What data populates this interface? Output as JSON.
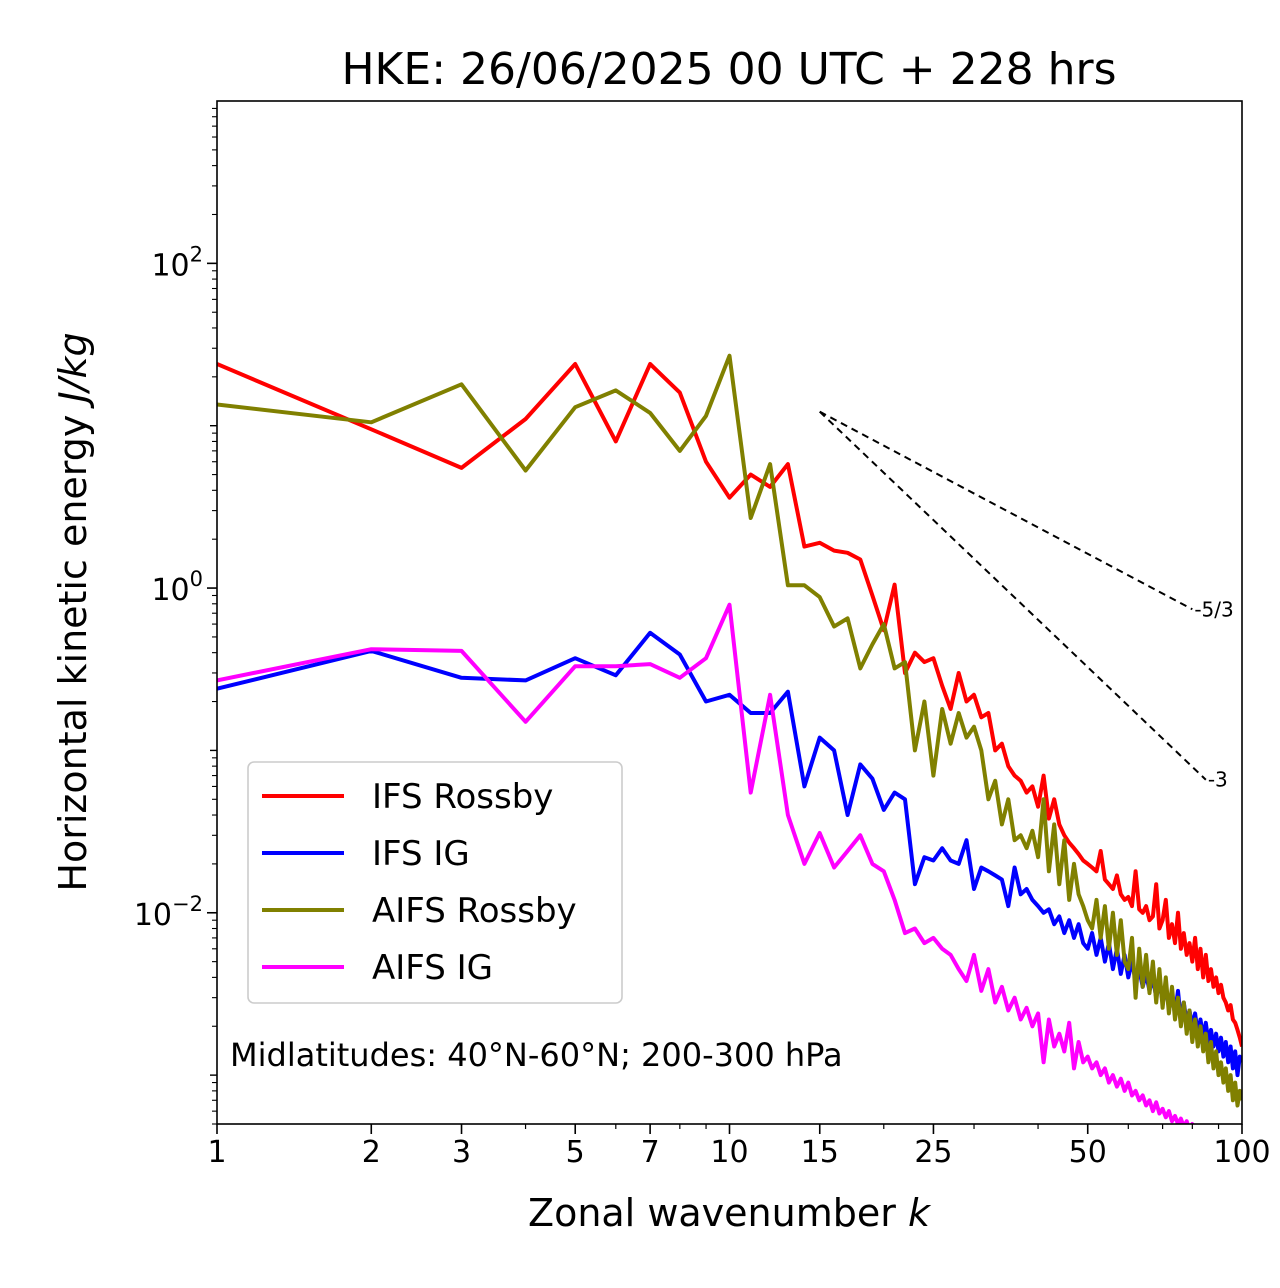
{
  "chart_data": {
    "type": "line",
    "title": "HKE: 26/06/2025 00 UTC + 228 hrs",
    "xlabel_text": "Zonal wavenumber ",
    "xlabel_var": "k",
    "ylabel_text": "Horizontal kinetic energy ",
    "ylabel_unit": "J/kg",
    "xscale": "log",
    "yscale": "log",
    "xlim": [
      1,
      100
    ],
    "ylim": [
      0.0005,
      1000
    ],
    "x_ticks": [
      1,
      2,
      3,
      5,
      7,
      10,
      15,
      25,
      50,
      100
    ],
    "x_tick_labels": [
      "1",
      "2",
      "3",
      "5",
      "7",
      "10",
      "15",
      "25",
      "50",
      "100"
    ],
    "y_ticks": [
      {
        "value": 100,
        "base": "10",
        "exp": "2"
      },
      {
        "value": 1,
        "base": "10",
        "exp": "0"
      },
      {
        "value": 0.01,
        "base": "10",
        "exp": "−2"
      }
    ],
    "annotation": "Midlatitudes: 40°N-60°N; 200-300 hPa",
    "legend_position": "lower-left",
    "reference_lines": [
      {
        "label": "-5/3",
        "x": [
          15,
          80
        ],
        "y": [
          12.2,
          0.74
        ],
        "color": "#000000"
      },
      {
        "label": "-3",
        "x": [
          15,
          85
        ],
        "y": [
          12.2,
          0.066
        ],
        "color": "#000000"
      }
    ],
    "series": [
      {
        "name": "IFS Rossby",
        "color": "#ff0000",
        "x": [
          1,
          2,
          3,
          4,
          5,
          6,
          7,
          8,
          9,
          10,
          11,
          12,
          13,
          14,
          15,
          16,
          17,
          18,
          19,
          20,
          21,
          22,
          23,
          24,
          25,
          26,
          27,
          28,
          29,
          30,
          31,
          32,
          33,
          34,
          35,
          36,
          37,
          38,
          39,
          40,
          41,
          42,
          43,
          44,
          45,
          46,
          47,
          48,
          49,
          50,
          51,
          52,
          53,
          54,
          55,
          56,
          57,
          58,
          59,
          60,
          61,
          62,
          63,
          64,
          65,
          66,
          67,
          68,
          69,
          70,
          71,
          72,
          73,
          74,
          75,
          76,
          77,
          78,
          79,
          80,
          81,
          82,
          83,
          84,
          85,
          86,
          87,
          88,
          89,
          90,
          91,
          92,
          93,
          94,
          95,
          96,
          97,
          98,
          99,
          100
        ],
        "y": [
          24,
          9.5,
          5.5,
          11,
          24,
          8,
          24,
          16,
          6,
          3.6,
          5,
          4.2,
          5.8,
          1.8,
          1.9,
          1.7,
          1.65,
          1.5,
          0.9,
          0.55,
          1.05,
          0.3,
          0.4,
          0.35,
          0.37,
          0.25,
          0.18,
          0.3,
          0.2,
          0.22,
          0.16,
          0.17,
          0.1,
          0.11,
          0.08,
          0.07,
          0.065,
          0.055,
          0.06,
          0.045,
          0.07,
          0.038,
          0.05,
          0.035,
          0.03,
          0.027,
          0.025,
          0.023,
          0.021,
          0.02,
          0.019,
          0.018,
          0.024,
          0.016,
          0.015,
          0.014,
          0.017,
          0.013,
          0.012,
          0.0125,
          0.011,
          0.018,
          0.0105,
          0.01,
          0.011,
          0.009,
          0.0095,
          0.015,
          0.008,
          0.009,
          0.012,
          0.007,
          0.0085,
          0.0065,
          0.01,
          0.006,
          0.0075,
          0.0055,
          0.0065,
          0.005,
          0.007,
          0.0045,
          0.006,
          0.004,
          0.0055,
          0.0038,
          0.0045,
          0.0035,
          0.004,
          0.0032,
          0.0036,
          0.003,
          0.0028,
          0.0025,
          0.0027,
          0.0022,
          0.0021,
          0.0019,
          0.0017,
          0.0015
        ]
      },
      {
        "name": "IFS IG",
        "color": "#0000ff",
        "x": [
          1,
          2,
          3,
          4,
          5,
          6,
          7,
          8,
          9,
          10,
          11,
          12,
          13,
          14,
          15,
          16,
          17,
          18,
          19,
          20,
          21,
          22,
          23,
          24,
          25,
          26,
          27,
          28,
          29,
          30,
          31,
          32,
          33,
          34,
          35,
          36,
          37,
          38,
          39,
          40,
          41,
          42,
          43,
          44,
          45,
          46,
          47,
          48,
          49,
          50,
          51,
          52,
          53,
          54,
          55,
          56,
          57,
          58,
          59,
          60,
          61,
          62,
          63,
          64,
          65,
          66,
          67,
          68,
          69,
          70,
          71,
          72,
          73,
          74,
          75,
          76,
          77,
          78,
          79,
          80,
          81,
          82,
          83,
          84,
          85,
          86,
          87,
          88,
          89,
          90,
          91,
          92,
          93,
          94,
          95,
          96,
          97,
          98,
          99,
          100
        ],
        "y": [
          0.24,
          0.41,
          0.28,
          0.27,
          0.37,
          0.29,
          0.53,
          0.39,
          0.2,
          0.22,
          0.17,
          0.17,
          0.23,
          0.06,
          0.12,
          0.1,
          0.04,
          0.082,
          0.067,
          0.043,
          0.055,
          0.05,
          0.015,
          0.022,
          0.021,
          0.025,
          0.021,
          0.02,
          0.028,
          0.014,
          0.019,
          0.018,
          0.017,
          0.016,
          0.011,
          0.019,
          0.013,
          0.014,
          0.012,
          0.011,
          0.01,
          0.0105,
          0.0085,
          0.0095,
          0.0075,
          0.009,
          0.007,
          0.0085,
          0.0065,
          0.006,
          0.0075,
          0.0055,
          0.007,
          0.005,
          0.0065,
          0.0045,
          0.006,
          0.0042,
          0.0055,
          0.004,
          0.005,
          0.0038,
          0.0045,
          0.0035,
          0.0042,
          0.0033,
          0.004,
          0.003,
          0.0038,
          0.0028,
          0.0035,
          0.0026,
          0.003,
          0.0024,
          0.0033,
          0.0022,
          0.0028,
          0.0021,
          0.0025,
          0.002,
          0.0024,
          0.0018,
          0.0022,
          0.0017,
          0.0021,
          0.0016,
          0.0019,
          0.0015,
          0.0018,
          0.0014,
          0.0017,
          0.0013,
          0.0016,
          0.0012,
          0.0015,
          0.0011,
          0.0014,
          0.001,
          0.0013,
          0.0012
        ]
      },
      {
        "name": "AIFS Rossby",
        "color": "#808000",
        "x": [
          1,
          2,
          3,
          4,
          5,
          6,
          7,
          8,
          9,
          10,
          11,
          12,
          13,
          14,
          15,
          16,
          17,
          18,
          19,
          20,
          21,
          22,
          23,
          24,
          25,
          26,
          27,
          28,
          29,
          30,
          31,
          32,
          33,
          34,
          35,
          36,
          37,
          38,
          39,
          40,
          41,
          42,
          43,
          44,
          45,
          46,
          47,
          48,
          49,
          50,
          51,
          52,
          53,
          54,
          55,
          56,
          57,
          58,
          59,
          60,
          61,
          62,
          63,
          64,
          65,
          66,
          67,
          68,
          69,
          70,
          71,
          72,
          73,
          74,
          75,
          76,
          77,
          78,
          79,
          80,
          81,
          82,
          83,
          84,
          85,
          86,
          87,
          88,
          89,
          90,
          91,
          92,
          93,
          94,
          95,
          96,
          97,
          98,
          99,
          100
        ],
        "y": [
          13.5,
          10.5,
          18,
          5.3,
          13,
          16.5,
          12,
          7,
          11.5,
          27,
          2.7,
          5.8,
          1.04,
          1.04,
          0.88,
          0.58,
          0.65,
          0.32,
          0.45,
          0.6,
          0.32,
          0.35,
          0.1,
          0.2,
          0.07,
          0.18,
          0.11,
          0.17,
          0.12,
          0.14,
          0.1,
          0.05,
          0.065,
          0.035,
          0.05,
          0.028,
          0.03,
          0.025,
          0.032,
          0.022,
          0.05,
          0.018,
          0.035,
          0.015,
          0.028,
          0.012,
          0.02,
          0.013,
          0.011,
          0.009,
          0.008,
          0.012,
          0.007,
          0.011,
          0.006,
          0.01,
          0.0055,
          0.009,
          0.005,
          0.0045,
          0.007,
          0.003,
          0.006,
          0.0035,
          0.0055,
          0.0032,
          0.005,
          0.0028,
          0.0045,
          0.0026,
          0.004,
          0.0024,
          0.0035,
          0.0022,
          0.003,
          0.002,
          0.0028,
          0.0018,
          0.0025,
          0.0016,
          0.0022,
          0.0015,
          0.002,
          0.0014,
          0.0018,
          0.0012,
          0.0016,
          0.0011,
          0.0014,
          0.001,
          0.0012,
          0.0009,
          0.0011,
          0.0008,
          0.001,
          0.0007,
          0.0009,
          0.00065,
          0.0008,
          0.0007
        ]
      },
      {
        "name": "AIFS IG",
        "color": "#ff00ff",
        "x": [
          1,
          2,
          3,
          4,
          5,
          6,
          7,
          8,
          9,
          10,
          11,
          12,
          13,
          14,
          15,
          16,
          17,
          18,
          19,
          20,
          21,
          22,
          23,
          24,
          25,
          26,
          27,
          28,
          29,
          30,
          31,
          32,
          33,
          34,
          35,
          36,
          37,
          38,
          39,
          40,
          41,
          42,
          43,
          44,
          45,
          46,
          47,
          48,
          49,
          50,
          51,
          52,
          53,
          54,
          55,
          56,
          57,
          58,
          59,
          60,
          61,
          62,
          63,
          64,
          65,
          66,
          67,
          68,
          69,
          70,
          71,
          72,
          73,
          74,
          75,
          76,
          77,
          78,
          79,
          80,
          81,
          82,
          83,
          84,
          85,
          86,
          87,
          88,
          89,
          90,
          91,
          92,
          93,
          94,
          95,
          96,
          97,
          98,
          99,
          100
        ],
        "y": [
          0.27,
          0.42,
          0.41,
          0.15,
          0.33,
          0.33,
          0.34,
          0.28,
          0.37,
          0.79,
          0.055,
          0.22,
          0.04,
          0.02,
          0.031,
          0.019,
          0.024,
          0.03,
          0.02,
          0.018,
          0.012,
          0.0075,
          0.008,
          0.0065,
          0.007,
          0.006,
          0.0055,
          0.0045,
          0.0038,
          0.0055,
          0.0033,
          0.0045,
          0.0028,
          0.0035,
          0.0025,
          0.003,
          0.0022,
          0.0026,
          0.002,
          0.0024,
          0.0012,
          0.0022,
          0.0015,
          0.0018,
          0.0014,
          0.0021,
          0.0011,
          0.0016,
          0.0012,
          0.0013,
          0.0011,
          0.0012,
          0.001,
          0.0011,
          0.0009,
          0.001,
          0.00085,
          0.00095,
          0.0008,
          0.0009,
          0.00075,
          0.0008,
          0.0007,
          0.00075,
          0.00065,
          0.0007,
          0.0006,
          0.00068,
          0.00058,
          0.00062,
          0.00055,
          0.0006,
          0.00052,
          0.00056,
          0.0005,
          0.00054,
          0.00048,
          0.00052,
          0.00046,
          0.0005,
          0.00045,
          0.00048,
          0.00044,
          0.00046,
          0.00043,
          0.00045,
          0.00042,
          0.00044,
          0.00041,
          0.00043,
          0.0004,
          0.00042,
          0.00039,
          0.00041,
          0.00038,
          0.0004,
          0.00037,
          0.00039,
          0.00036,
          0.00038
        ]
      }
    ]
  }
}
